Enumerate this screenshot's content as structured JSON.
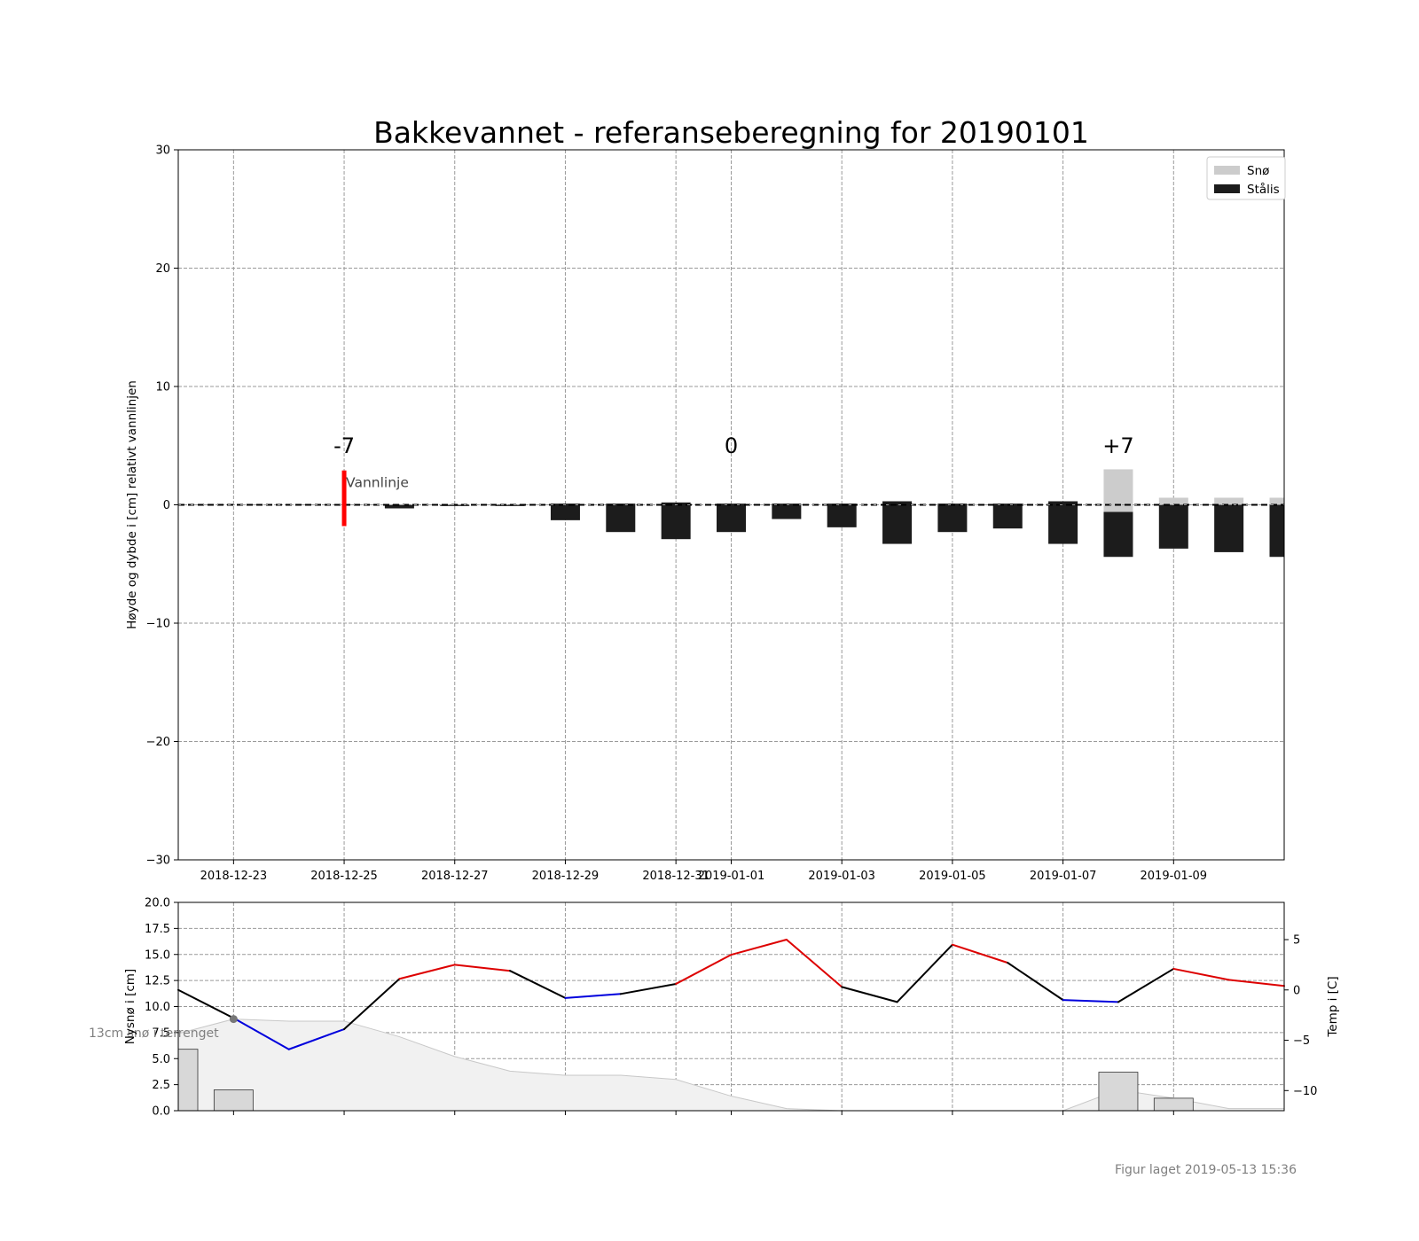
{
  "figure_note": "Figur laget 2019-05-13 15:36",
  "chart_data": [
    {
      "type": "bar",
      "title": "Bakkevannet - referanseberegning for 20190101",
      "ylabel": "Høyde og dybde i [cm] relativt vannlinjen",
      "xlabel": "",
      "ylim": [
        -30,
        30
      ],
      "xlim": [
        "2018-12-22",
        "2019-01-11"
      ],
      "grid": true,
      "legend_position": "upper right",
      "yticks": [
        -30,
        -20,
        -10,
        0,
        10,
        20,
        30
      ],
      "xticks": [
        "2018-12-23",
        "2018-12-25",
        "2018-12-27",
        "2018-12-29",
        "2018-12-31",
        "2019-01-01",
        "2019-01-03",
        "2019-01-05",
        "2019-01-07",
        "2019-01-09"
      ],
      "legend": [
        {
          "label": "Snø",
          "color": "#cccccc"
        },
        {
          "label": "Stålis",
          "color": "#1c1c1c"
        }
      ],
      "categories": [
        "2018-12-26",
        "2018-12-27",
        "2018-12-28",
        "2018-12-29",
        "2018-12-30",
        "2018-12-31",
        "2019-01-01",
        "2019-01-02",
        "2019-01-03",
        "2019-01-04",
        "2019-01-05",
        "2019-01-06",
        "2019-01-07",
        "2019-01-08",
        "2019-01-09",
        "2019-01-10",
        "2019-01-11"
      ],
      "series": [
        {
          "name": "Stålis",
          "color": "#1c1c1c",
          "bottom": [
            -0.3,
            -0.1,
            -0.1,
            -1.3,
            -2.3,
            -2.9,
            -2.3,
            -1.2,
            -1.9,
            -3.3,
            -2.3,
            -2.0,
            -3.3,
            -4.4,
            -3.7,
            -4.0,
            -4.4
          ],
          "top": [
            0.0,
            0.0,
            0.0,
            0.1,
            0.1,
            0.2,
            0.1,
            0.1,
            0.1,
            0.3,
            0.1,
            0.1,
            0.3,
            -0.6,
            0.0,
            0.0,
            0.0
          ]
        },
        {
          "name": "Snø",
          "color": "#cccccc",
          "bottom": [
            0,
            0,
            0,
            0,
            0,
            0,
            0,
            0,
            0,
            0,
            0,
            0,
            0,
            -0.6,
            0.0,
            0.0,
            0.0
          ],
          "top": [
            0,
            0,
            0,
            0,
            0,
            0,
            0,
            0,
            0,
            0,
            0,
            0,
            0,
            3.0,
            0.6,
            0.6,
            0.6
          ]
        }
      ],
      "waterline": 0,
      "annotations": [
        {
          "date": "2018-12-25",
          "text": "-7"
        },
        {
          "date": "2019-01-01",
          "text": "0"
        },
        {
          "date": "2019-01-08",
          "text": "+7"
        }
      ],
      "waterline_marker": {
        "date": "2018-12-25",
        "label": "Vannlinje",
        "ymin": -1.8,
        "ymax": 2.9,
        "color": "#ff0000"
      }
    },
    {
      "type": "bar",
      "ylabel": "Nysnø i [cm]",
      "ylim": [
        0,
        20
      ],
      "yticks": [
        0.0,
        2.5,
        5.0,
        7.5,
        10.0,
        12.5,
        15.0,
        17.5,
        20.0
      ],
      "grid": true,
      "snow_bars": [
        {
          "date": "2018-12-22",
          "value": 5.9
        },
        {
          "date": "2018-12-23",
          "value": 2.0
        },
        {
          "date": "2019-01-08",
          "value": 3.7
        },
        {
          "date": "2019-01-09",
          "value": 1.2
        }
      ],
      "snow_depth_area": {
        "dates": [
          "2018-12-22",
          "2018-12-23",
          "2018-12-24",
          "2018-12-25",
          "2018-12-26",
          "2018-12-27",
          "2018-12-28",
          "2018-12-29",
          "2018-12-30",
          "2018-12-31",
          "2019-01-01",
          "2019-01-02",
          "2019-01-03",
          "2019-01-04",
          "2019-01-05",
          "2019-01-06",
          "2019-01-07",
          "2019-01-08",
          "2019-01-09",
          "2019-01-10",
          "2019-01-11"
        ],
        "values": [
          7.4,
          8.8,
          8.6,
          8.6,
          7.1,
          5.2,
          3.8,
          3.4,
          3.4,
          3.0,
          1.4,
          0.2,
          0.0,
          0.0,
          0.0,
          0.0,
          0.0,
          2.0,
          1.2,
          0.2,
          0.2
        ]
      },
      "observation": {
        "date": "2018-12-23",
        "value": 8.8,
        "label": "13cm snø i terrenget"
      },
      "temperature": {
        "ylabel": "Temp i [C]",
        "ylim": [
          -12,
          8.7
        ],
        "yticks": [
          -10,
          -5,
          0,
          5
        ],
        "dates": [
          "2018-12-22",
          "2018-12-23",
          "2018-12-24",
          "2018-12-25",
          "2018-12-26",
          "2018-12-27",
          "2018-12-28",
          "2018-12-29",
          "2018-12-30",
          "2018-12-31",
          "2019-01-01",
          "2019-01-02",
          "2019-01-03",
          "2019-01-04",
          "2019-01-05",
          "2019-01-06",
          "2019-01-07",
          "2019-01-08",
          "2019-01-09",
          "2019-01-10",
          "2019-01-11"
        ],
        "values": [
          0.0,
          -2.8,
          -5.9,
          -3.9,
          1.1,
          2.5,
          1.9,
          -0.8,
          -0.4,
          0.6,
          3.5,
          5.0,
          0.3,
          -1.2,
          4.5,
          2.7,
          -1.0,
          -1.2,
          2.1,
          1.0,
          0.4
        ],
        "colors": {
          "above": "#dd0000",
          "below": "#0000dd",
          "neutral": "#000000"
        }
      }
    }
  ]
}
